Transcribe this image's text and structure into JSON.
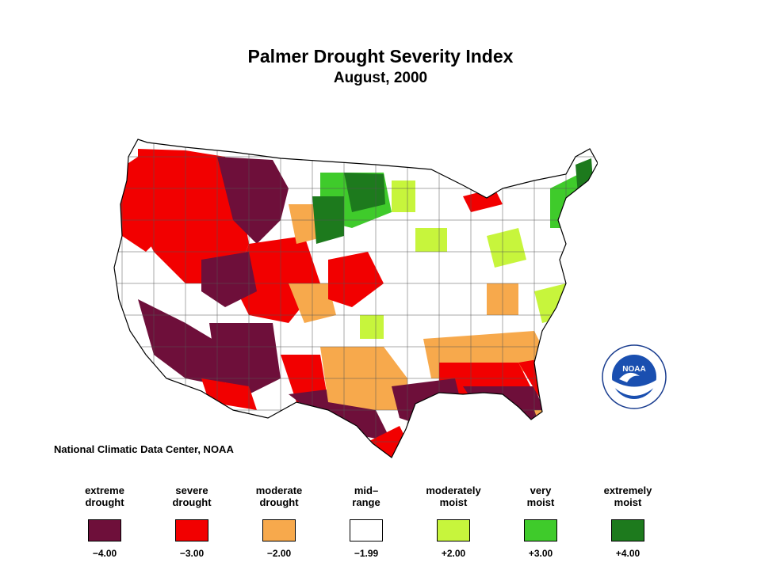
{
  "title": "Palmer Drought Severity Index",
  "subtitle": "August, 2000",
  "credit": "National Climatic Data Center, NOAA",
  "logo": {
    "icon": "noaa-logo-icon",
    "text": "NOAA"
  },
  "colors": {
    "extreme_drought": "#6e0f3a",
    "severe_drought": "#f20000",
    "moderate_drought": "#f7a94c",
    "mid_range": "#ffffff",
    "moderately_moist": "#c7f53c",
    "very_moist": "#3fcb2b",
    "extremely_moist": "#1d7a1d"
  },
  "legend": [
    {
      "label_line1": "extreme",
      "label_line2": "drought",
      "value": "−4.00",
      "color": "#6e0f3a"
    },
    {
      "label_line1": "severe",
      "label_line2": "drought",
      "value": "−3.00",
      "color": "#f20000"
    },
    {
      "label_line1": "moderate",
      "label_line2": "drought",
      "value": "−2.00",
      "color": "#f7a94c"
    },
    {
      "label_line1": "mid–",
      "label_line2": "range",
      "value": "−1.99",
      "color": "#ffffff"
    },
    {
      "label_line1": "moderately",
      "label_line2": "moist",
      "value": "+2.00",
      "color": "#c7f53c"
    },
    {
      "label_line1": "very",
      "label_line2": "moist",
      "value": "+3.00",
      "color": "#3fcb2b"
    },
    {
      "label_line1": "extremely",
      "label_line2": "moist",
      "value": "+4.00",
      "color": "#1d7a1d"
    }
  ]
}
